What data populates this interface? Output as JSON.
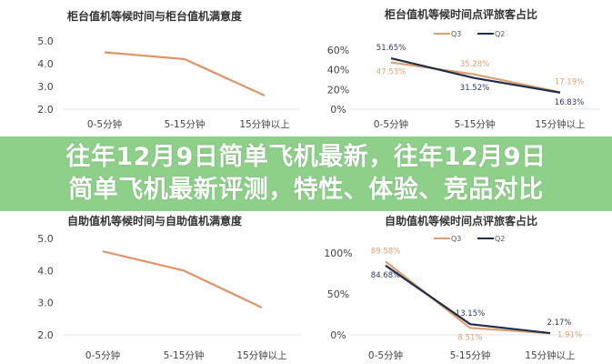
{
  "headline": {
    "line1": "往年12月9日简单飞机最新，往年12月9日",
    "line2": "简单飞机最新评测，特性、体验、竞品对比"
  },
  "colors": {
    "q3": "#e0a06e",
    "q2": "#1f2d4e",
    "banner": "#8ed08a",
    "line": "#e0946a"
  },
  "chart_data": [
    {
      "type": "line",
      "title": "柜台值机等候时间与柜台值机满意度",
      "categories": [
        "0-5分钟",
        "5-15分钟",
        "15分钟以上"
      ],
      "yticks": [
        "5.0",
        "4.0",
        "3.0",
        "2.0"
      ],
      "ylim": [
        2,
        5
      ],
      "series": [
        {
          "values": [
            4.5,
            4.2,
            2.6
          ]
        }
      ]
    },
    {
      "type": "line",
      "title": "柜台值机等候时间点评旅客占比",
      "categories": [
        "0-5分钟",
        "5-15分钟",
        "15分钟以上"
      ],
      "yticks": [
        "60%",
        "40%",
        "20%",
        "0%"
      ],
      "ylim": [
        0,
        60
      ],
      "legend": "top",
      "series": [
        {
          "name": "Q3",
          "values": [
            47.53,
            35.28,
            17.19
          ],
          "labels": [
            "47.53%",
            "35.28%",
            "17.19%"
          ]
        },
        {
          "name": "Q2",
          "values": [
            51.65,
            31.52,
            16.83
          ],
          "labels": [
            "51.65%",
            "31.52%",
            "16.83%"
          ]
        }
      ]
    },
    {
      "type": "line",
      "title": "自助值机等候时间与自助值机满意度",
      "categories": [
        "0-5分钟",
        "5-15分钟",
        "15分钟以上"
      ],
      "yticks": [
        "5.0",
        "4.0",
        "3.0",
        "2.0"
      ],
      "ylim": [
        2,
        5
      ],
      "series": [
        {
          "values": [
            4.6,
            4.0,
            2.85
          ]
        }
      ]
    },
    {
      "type": "line",
      "title": "自助值机等候时间点评旅客占比",
      "categories": [
        "0-5分钟",
        "5-15分钟",
        "15分钟以上"
      ],
      "yticks": [
        "100%",
        "50%",
        "0%"
      ],
      "ylim": [
        0,
        100
      ],
      "legend": "top",
      "series": [
        {
          "name": "Q3",
          "values": [
            89.58,
            8.51,
            1.91
          ],
          "labels": [
            "89.58%",
            "8.51%",
            "1.91%"
          ]
        },
        {
          "name": "Q2",
          "values": [
            84.68,
            13.15,
            2.17
          ],
          "labels": [
            "84.68%",
            "13.15%",
            "2.17%"
          ]
        }
      ]
    }
  ]
}
